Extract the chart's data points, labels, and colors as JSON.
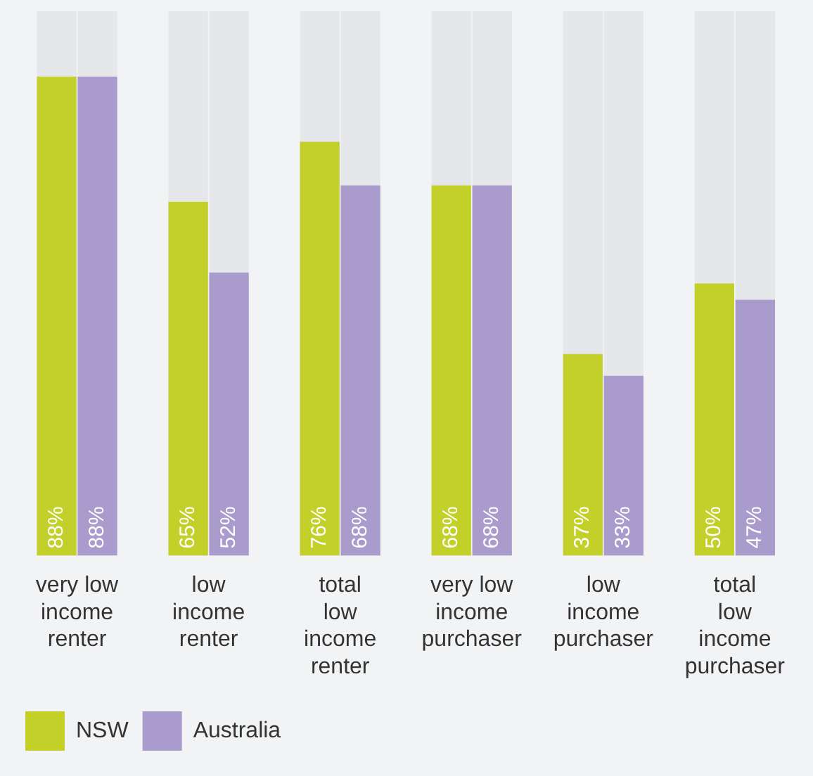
{
  "chart_data": {
    "type": "bar",
    "categories": [
      "very low income renter",
      "low income renter",
      "total low income renter",
      "very low income purchaser",
      "low income purchaser",
      "total low income purchaser"
    ],
    "series": [
      {
        "name": "NSW",
        "color": "#c3d02a",
        "values": [
          88,
          65,
          76,
          68,
          37,
          50
        ],
        "value_labels": [
          "88%",
          "65%",
          "76%",
          "68%",
          "37%",
          "50%"
        ]
      },
      {
        "name": "Australia",
        "color": "#a99bcb",
        "values": [
          88,
          52,
          68,
          68,
          33,
          47
        ],
        "value_labels": [
          "88%",
          "52%",
          "68%",
          "68%",
          "33%",
          "47%"
        ]
      }
    ],
    "legend": "bottom left",
    "grid": false
  }
}
